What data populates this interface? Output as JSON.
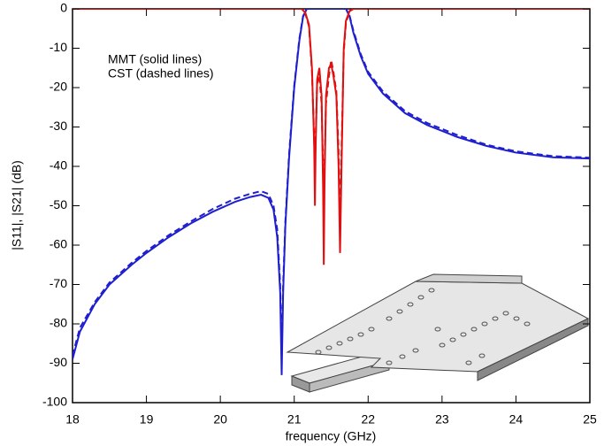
{
  "chart_data": {
    "type": "line",
    "xlabel": "frequency (GHz)",
    "ylabel": "|S11|, |S21| (dB)",
    "annotations": [
      "MMT (solid lines)",
      "CST (dashed lines)"
    ],
    "xlim": [
      18,
      25
    ],
    "xticks": [
      18,
      19,
      20,
      21,
      22,
      23,
      24,
      25
    ],
    "ylim": [
      -100,
      0
    ],
    "yticks": [
      0,
      -10,
      -20,
      -30,
      -40,
      -50,
      -60,
      -70,
      -80,
      -90,
      -100
    ],
    "series": [
      {
        "color": "#1f1fd0",
        "dashed": false,
        "x": [
          18,
          18.1,
          18.3,
          18.5,
          18.8,
          19,
          19.3,
          19.6,
          19.9,
          20.2,
          20.4,
          20.55,
          20.65,
          20.72,
          20.77,
          20.81,
          20.83,
          20.85,
          20.88,
          20.93,
          21.0,
          21.07,
          21.12,
          21.17,
          21.7,
          21.75,
          21.8,
          21.9,
          22.0,
          22.2,
          22.5,
          22.8,
          23.2,
          23.6,
          24.0,
          24.5,
          25
        ],
        "values": [
          -89,
          -82,
          -75,
          -70,
          -65,
          -62,
          -58,
          -54.5,
          -51.5,
          -49,
          -47.8,
          -47.2,
          -48,
          -51,
          -58,
          -72,
          -93,
          -72,
          -55,
          -38,
          -20,
          -8,
          -2,
          0,
          0,
          -2,
          -6,
          -12,
          -16.5,
          -21.5,
          -26.5,
          -29.5,
          -32.5,
          -34.8,
          -36.5,
          -37.7,
          -38
        ]
      },
      {
        "color": "#1f1fd0",
        "dashed": true,
        "x": [
          18,
          18.1,
          18.3,
          18.5,
          18.8,
          19,
          19.3,
          19.6,
          19.9,
          20.2,
          20.4,
          20.55,
          20.65,
          20.72,
          20.77,
          20.81,
          20.83,
          20.85,
          20.88,
          20.93,
          21.0,
          21.07,
          21.12,
          21.17,
          21.7,
          21.75,
          21.8,
          21.9,
          22.0,
          22.2,
          22.5,
          22.8,
          23.2,
          23.6,
          24.0,
          24.5,
          25
        ],
        "values": [
          -88,
          -81,
          -74.5,
          -69.5,
          -64.5,
          -61.5,
          -57.5,
          -54,
          -50.8,
          -48.2,
          -47,
          -46.3,
          -47,
          -50,
          -56,
          -70,
          -88,
          -70,
          -54,
          -37,
          -19.5,
          -7.5,
          -1.8,
          0,
          0,
          -1.8,
          -5.5,
          -11.5,
          -16,
          -21,
          -26,
          -29,
          -32,
          -34.5,
          -36.2,
          -37.4,
          -37.8
        ]
      },
      {
        "color": "#e01010",
        "dashed": false,
        "x": [
          18,
          21.1,
          21.15,
          21.2,
          21.24,
          21.27,
          21.28,
          21.29,
          21.31,
          21.34,
          21.37,
          21.39,
          21.4,
          21.41,
          21.43,
          21.47,
          21.5,
          21.53,
          21.57,
          21.6,
          21.62,
          21.64,
          21.67,
          21.7,
          21.75,
          21.8,
          25
        ],
        "values": [
          0,
          0,
          -1,
          -4,
          -15,
          -35,
          -50,
          -35,
          -18,
          -15,
          -22,
          -45,
          -65,
          -45,
          -22,
          -15,
          -14,
          -17,
          -22,
          -40,
          -62,
          -40,
          -10,
          -3,
          -0.5,
          0,
          0
        ]
      },
      {
        "color": "#e01010",
        "dashed": true,
        "x": [
          18,
          21.1,
          21.15,
          21.2,
          21.24,
          21.27,
          21.28,
          21.29,
          21.31,
          21.34,
          21.37,
          21.39,
          21.4,
          21.41,
          21.43,
          21.47,
          21.5,
          21.53,
          21.57,
          21.6,
          21.62,
          21.64,
          21.67,
          21.7,
          21.75,
          21.8,
          25
        ],
        "values": [
          0,
          0,
          -1.2,
          -4.5,
          -16,
          -33,
          -42,
          -33,
          -19,
          -17,
          -24,
          -40,
          -47,
          -40,
          -24,
          -17,
          -13,
          -16,
          -21,
          -36,
          -55,
          -36,
          -11,
          -3.5,
          -0.6,
          0,
          0
        ]
      }
    ]
  }
}
